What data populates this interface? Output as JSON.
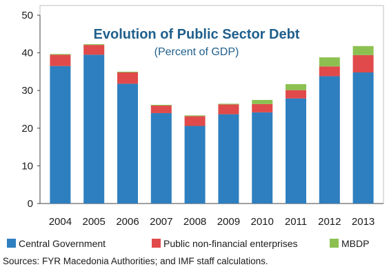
{
  "chart_data": {
    "type": "bar",
    "stacked": true,
    "title": "Evolution of Public Sector Debt",
    "subtitle": "(Percent of GDP)",
    "categories": [
      "2004",
      "2005",
      "2006",
      "2007",
      "2008",
      "2009",
      "2010",
      "2011",
      "2012",
      "2013"
    ],
    "series": [
      {
        "name": "Central Government",
        "color": "#2e7fbf",
        "values": [
          36.5,
          39.5,
          31.8,
          24.0,
          20.6,
          23.7,
          24.2,
          27.9,
          33.8,
          34.8
        ]
      },
      {
        "name": "Public non-financial  enterprises",
        "color": "#e04a4a",
        "values": [
          3.0,
          2.6,
          3.0,
          2.0,
          2.6,
          2.6,
          2.2,
          2.2,
          2.6,
          4.6
        ]
      },
      {
        "name": "MBDP",
        "color": "#8cc152",
        "values": [
          0.2,
          0.2,
          0.2,
          0.2,
          0.2,
          0.2,
          1.1,
          1.6,
          2.4,
          2.4
        ]
      }
    ],
    "ylim": [
      0,
      50
    ],
    "yticks": [
      0,
      10,
      20,
      30,
      40,
      50
    ],
    "legend_position": "bottom",
    "grid": false
  },
  "source_note": "Sources: FYR Macedonia Authorities; and IMF staff calculations."
}
